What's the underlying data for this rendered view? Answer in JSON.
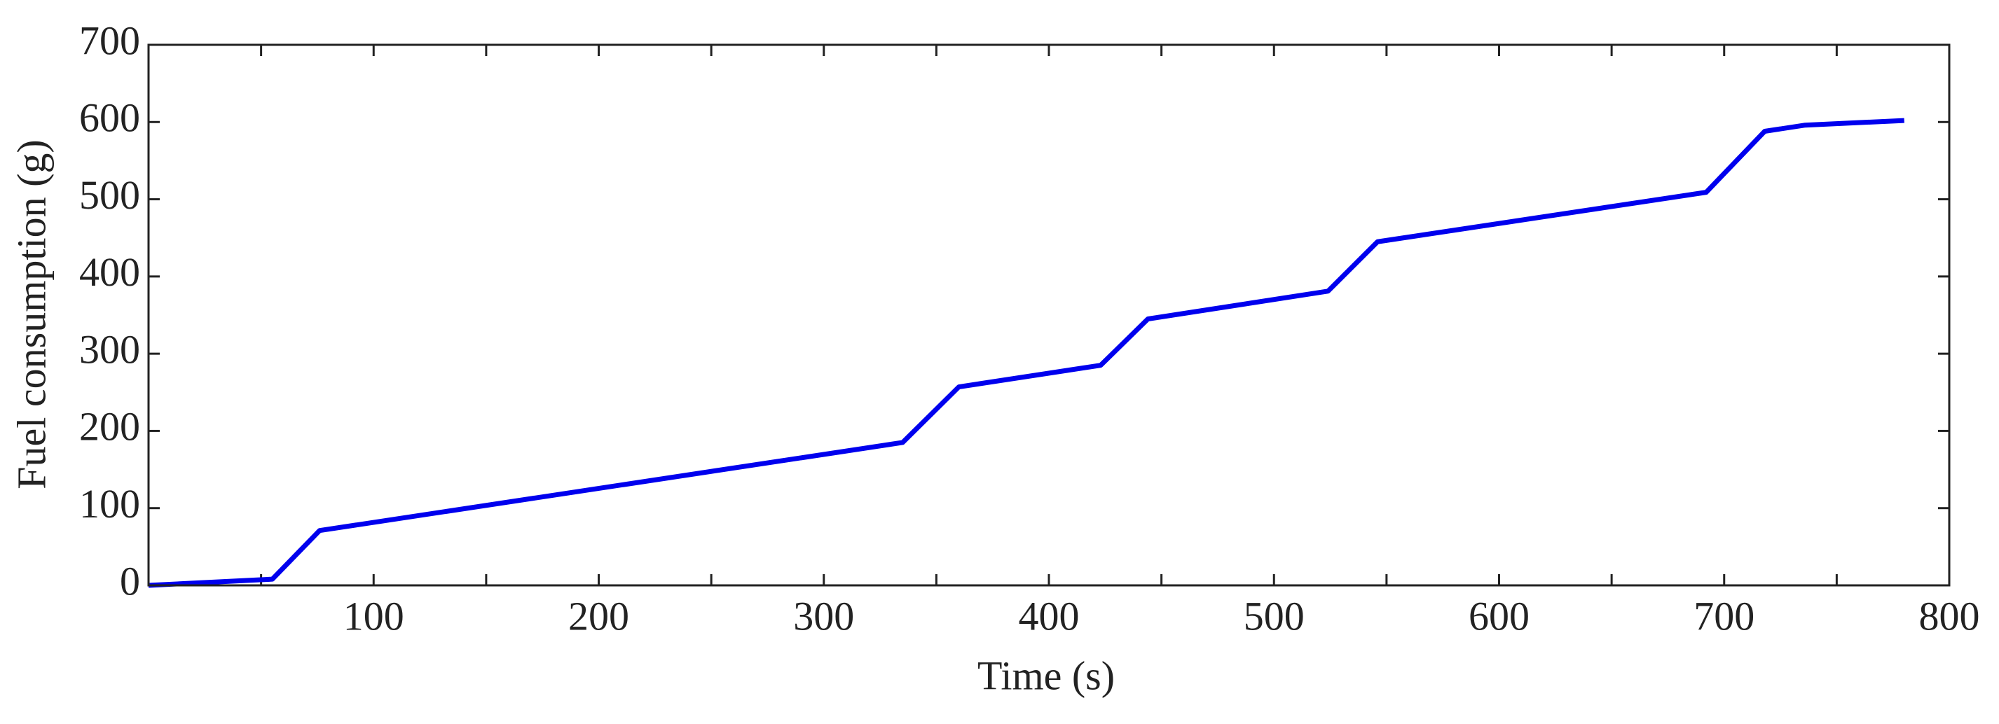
{
  "chart_data": {
    "type": "line",
    "xlabel": "Time (s)",
    "ylabel": "Fuel consumption (g)",
    "x": [
      0,
      55,
      76,
      335,
      360,
      423,
      444,
      524,
      546,
      692,
      718,
      736,
      780
    ],
    "series": [
      {
        "color": "#0000ee",
        "values": [
          0,
          8,
          71,
          185,
          257,
          285,
          345,
          381,
          445,
          509,
          588,
          596,
          602
        ]
      }
    ],
    "xlim": [
      0,
      800
    ],
    "xticks": [
      100,
      200,
      300,
      400,
      500,
      600,
      700,
      800
    ],
    "xminorticks": [
      50,
      150,
      250,
      350,
      450,
      550,
      650,
      750
    ],
    "ylim": [
      0,
      700
    ],
    "yticks": [
      0,
      100,
      200,
      300,
      400,
      500,
      600,
      700
    ],
    "grid": false
  }
}
